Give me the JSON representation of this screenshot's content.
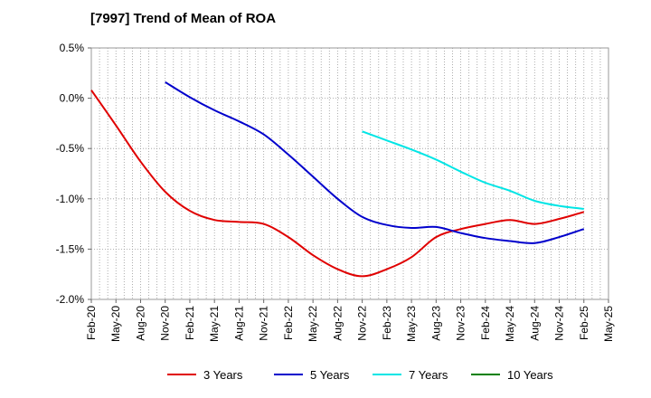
{
  "chart_data": {
    "type": "line",
    "title": "[7997]  Trend of Mean of ROA",
    "xlabel": "",
    "ylabel": "",
    "x_tick_labels": [
      "Feb-20",
      "May-20",
      "Aug-20",
      "Nov-20",
      "Feb-21",
      "May-21",
      "Aug-21",
      "Nov-21",
      "Feb-22",
      "May-22",
      "Aug-22",
      "Nov-22",
      "Feb-23",
      "May-23",
      "Aug-23",
      "Nov-23",
      "Feb-24",
      "May-24",
      "Aug-24",
      "Nov-24",
      "Feb-25",
      "May-25"
    ],
    "y_tick_labels": [
      "0.5%",
      "0.0%",
      "-0.5%",
      "-1.0%",
      "-1.5%",
      "-2.0%"
    ],
    "y_ticks": [
      0.5,
      0.0,
      -0.5,
      -1.0,
      -1.5,
      -2.0
    ],
    "ylim": [
      -2.0,
      0.5
    ],
    "x_range_months": [
      0,
      63
    ],
    "grid": "vertical-dotted-monthly",
    "legend_position": "bottom",
    "series": [
      {
        "name": "3 Years",
        "color": "#e00000",
        "points": [
          [
            0,
            0.08
          ],
          [
            3,
            -0.27
          ],
          [
            6,
            -0.63
          ],
          [
            9,
            -0.93
          ],
          [
            12,
            -1.12
          ],
          [
            15,
            -1.21
          ],
          [
            18,
            -1.23
          ],
          [
            21,
            -1.25
          ],
          [
            24,
            -1.38
          ],
          [
            27,
            -1.56
          ],
          [
            30,
            -1.7
          ],
          [
            33,
            -1.77
          ],
          [
            36,
            -1.7
          ],
          [
            39,
            -1.58
          ],
          [
            42,
            -1.38
          ],
          [
            45,
            -1.3
          ],
          [
            48,
            -1.25
          ],
          [
            51,
            -1.21
          ],
          [
            54,
            -1.25
          ],
          [
            57,
            -1.2
          ],
          [
            60,
            -1.13
          ]
        ]
      },
      {
        "name": "5 Years",
        "color": "#0000cc",
        "points": [
          [
            9,
            0.16
          ],
          [
            12,
            0.01
          ],
          [
            15,
            -0.12
          ],
          [
            18,
            -0.23
          ],
          [
            21,
            -0.36
          ],
          [
            24,
            -0.56
          ],
          [
            27,
            -0.78
          ],
          [
            30,
            -1.0
          ],
          [
            33,
            -1.18
          ],
          [
            36,
            -1.26
          ],
          [
            39,
            -1.29
          ],
          [
            42,
            -1.28
          ],
          [
            45,
            -1.34
          ],
          [
            48,
            -1.39
          ],
          [
            51,
            -1.42
          ],
          [
            54,
            -1.44
          ],
          [
            57,
            -1.38
          ],
          [
            60,
            -1.3
          ]
        ]
      },
      {
        "name": "7 Years",
        "color": "#00e5e5",
        "points": [
          [
            33,
            -0.33
          ],
          [
            36,
            -0.42
          ],
          [
            39,
            -0.51
          ],
          [
            42,
            -0.61
          ],
          [
            45,
            -0.73
          ],
          [
            48,
            -0.84
          ],
          [
            51,
            -0.92
          ],
          [
            54,
            -1.02
          ],
          [
            57,
            -1.07
          ],
          [
            60,
            -1.1
          ]
        ]
      },
      {
        "name": "10 Years",
        "color": "#008000",
        "points": []
      }
    ]
  }
}
